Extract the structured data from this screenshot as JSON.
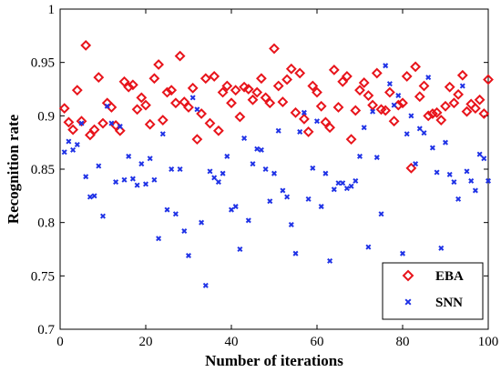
{
  "chart_data": {
    "type": "scatter",
    "title": "",
    "xlabel": "Number of iterations",
    "ylabel": "Recognition rate",
    "xlim": [
      0,
      100
    ],
    "ylim": [
      0.7,
      1.0
    ],
    "xticks": [
      "0",
      "20",
      "40",
      "60",
      "80",
      "100"
    ],
    "yticks": [
      "0.7",
      "0.75",
      "0.8",
      "0.85",
      "0.9",
      "0.95",
      "1"
    ],
    "grid": false,
    "legend_position": "bottom-right",
    "series": [
      {
        "name": "EBA",
        "marker": "diamond",
        "color": "#e8141b",
        "x": [
          1,
          2,
          3,
          4,
          5,
          6,
          7,
          8,
          9,
          10,
          11,
          12,
          13,
          14,
          15,
          16,
          17,
          18,
          19,
          20,
          21,
          22,
          23,
          24,
          25,
          26,
          27,
          28,
          29,
          30,
          31,
          32,
          33,
          34,
          35,
          36,
          37,
          38,
          39,
          40,
          41,
          42,
          43,
          44,
          45,
          46,
          47,
          48,
          49,
          50,
          51,
          52,
          53,
          54,
          55,
          56,
          57,
          58,
          59,
          60,
          61,
          62,
          63,
          64,
          65,
          66,
          67,
          68,
          69,
          70,
          71,
          72,
          73,
          74,
          75,
          76,
          77,
          78,
          79,
          80,
          81,
          82,
          83,
          84,
          85,
          86,
          87,
          88,
          89,
          90,
          91,
          92,
          93,
          94,
          95,
          96,
          97,
          98,
          99,
          100
        ],
        "y": [
          0.907,
          0.894,
          0.887,
          0.924,
          0.895,
          0.966,
          0.882,
          0.887,
          0.936,
          0.893,
          0.912,
          0.908,
          0.891,
          0.886,
          0.932,
          0.927,
          0.929,
          0.906,
          0.917,
          0.91,
          0.892,
          0.935,
          0.948,
          0.896,
          0.922,
          0.924,
          0.912,
          0.956,
          0.913,
          0.908,
          0.926,
          0.878,
          0.902,
          0.935,
          0.893,
          0.937,
          0.886,
          0.922,
          0.928,
          0.912,
          0.924,
          0.899,
          0.927,
          0.925,
          0.915,
          0.922,
          0.935,
          0.917,
          0.912,
          0.963,
          0.928,
          0.913,
          0.934,
          0.944,
          0.903,
          0.94,
          0.897,
          0.885,
          0.928,
          0.922,
          0.909,
          0.894,
          0.889,
          0.943,
          0.908,
          0.932,
          0.937,
          0.878,
          0.905,
          0.924,
          0.931,
          0.919,
          0.91,
          0.94,
          0.906,
          0.905,
          0.922,
          0.895,
          0.91,
          0.912,
          0.937,
          0.851,
          0.946,
          0.918,
          0.928,
          0.9,
          0.902,
          0.903,
          0.896,
          0.909,
          0.927,
          0.912,
          0.92,
          0.938,
          0.904,
          0.911,
          0.907,
          0.915,
          0.902,
          0.934
        ]
      },
      {
        "name": "SNN",
        "marker": "x",
        "color": "#1f32e6",
        "x": [
          1,
          2,
          3,
          4,
          5,
          6,
          7,
          8,
          9,
          10,
          11,
          12,
          13,
          14,
          15,
          16,
          17,
          18,
          19,
          20,
          21,
          22,
          23,
          24,
          25,
          26,
          27,
          28,
          29,
          30,
          31,
          32,
          33,
          34,
          35,
          36,
          37,
          38,
          39,
          40,
          41,
          42,
          43,
          44,
          45,
          46,
          47,
          48,
          49,
          50,
          51,
          52,
          53,
          54,
          55,
          56,
          57,
          58,
          59,
          60,
          61,
          62,
          63,
          64,
          65,
          66,
          67,
          68,
          69,
          70,
          71,
          72,
          73,
          74,
          75,
          76,
          77,
          78,
          79,
          80,
          81,
          82,
          83,
          84,
          85,
          86,
          87,
          88,
          89,
          90,
          91,
          92,
          93,
          94,
          95,
          96,
          97,
          98,
          99,
          100
        ],
        "y": [
          0.866,
          0.876,
          0.868,
          0.873,
          0.893,
          0.843,
          0.824,
          0.825,
          0.853,
          0.806,
          0.909,
          0.893,
          0.838,
          0.89,
          0.84,
          0.862,
          0.841,
          0.835,
          0.855,
          0.836,
          0.86,
          0.84,
          0.785,
          0.883,
          0.812,
          0.85,
          0.808,
          0.85,
          0.792,
          0.769,
          0.917,
          0.906,
          0.8,
          0.741,
          0.848,
          0.842,
          0.838,
          0.846,
          0.862,
          0.812,
          0.815,
          0.775,
          0.879,
          0.802,
          0.855,
          0.869,
          0.868,
          0.85,
          0.82,
          0.846,
          0.886,
          0.83,
          0.824,
          0.798,
          0.771,
          0.885,
          0.903,
          0.822,
          0.851,
          0.895,
          0.815,
          0.846,
          0.764,
          0.831,
          0.837,
          0.837,
          0.832,
          0.834,
          0.839,
          0.862,
          0.889,
          0.777,
          0.904,
          0.861,
          0.808,
          0.947,
          0.93,
          0.91,
          0.919,
          0.771,
          0.883,
          0.9,
          0.855,
          0.888,
          0.884,
          0.936,
          0.87,
          0.847,
          0.776,
          0.875,
          0.845,
          0.838,
          0.822,
          0.928,
          0.848,
          0.839,
          0.83,
          0.864,
          0.86,
          0.839
        ]
      }
    ]
  }
}
